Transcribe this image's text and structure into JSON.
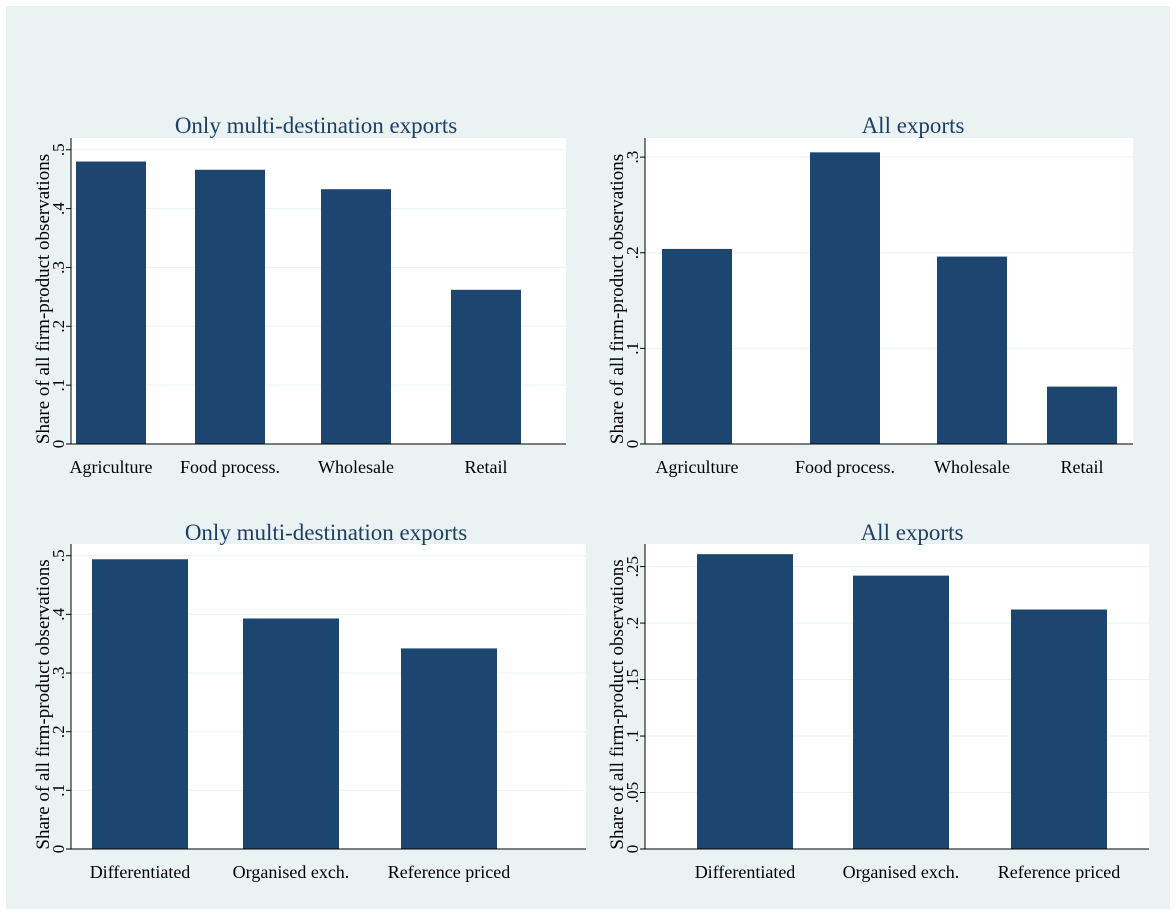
{
  "chart_data": [
    {
      "type": "bar",
      "title": "Only multi-destination exports",
      "ylabel": "Share of all firm-product observations",
      "categories": [
        "Agriculture",
        "Food process.",
        "Wholesale",
        "Retail"
      ],
      "values": [
        0.48,
        0.466,
        0.433,
        0.262
      ],
      "yticks": [
        0,
        0.1,
        0.2,
        0.3,
        0.4,
        0.5
      ],
      "ytick_labels": [
        "0",
        ".1",
        ".2",
        ".3",
        ".4",
        ".5"
      ],
      "ylim": [
        0,
        0.52
      ]
    },
    {
      "type": "bar",
      "title": "All exports",
      "ylabel": "Share of all firm-product observations",
      "categories": [
        "Agriculture",
        "Food process.",
        "Wholesale",
        "Retail"
      ],
      "values": [
        0.204,
        0.305,
        0.196,
        0.06
      ],
      "yticks": [
        0,
        0.1,
        0.2,
        0.3
      ],
      "ytick_labels": [
        "0",
        ".1",
        ".2",
        ".3"
      ],
      "ylim": [
        0,
        0.32
      ]
    },
    {
      "type": "bar",
      "title": "Only multi-destination exports",
      "ylabel": "Share of all firm-product observations",
      "categories": [
        "Differentiated",
        "Organised exch.",
        "Reference priced"
      ],
      "values": [
        0.494,
        0.393,
        0.342
      ],
      "yticks": [
        0,
        0.1,
        0.2,
        0.3,
        0.4,
        0.5
      ],
      "ytick_labels": [
        "0",
        ".1",
        ".2",
        ".3",
        ".4",
        ".5"
      ],
      "ylim": [
        0,
        0.52
      ]
    },
    {
      "type": "bar",
      "title": "All exports",
      "ylabel": "Share of all firm-product observations",
      "categories": [
        "Differentiated",
        "Organised exch.",
        "Reference priced"
      ],
      "values": [
        0.261,
        0.242,
        0.212
      ],
      "yticks": [
        0,
        0.05,
        0.1,
        0.15,
        0.2,
        0.25
      ],
      "ytick_labels": [
        "0",
        ".05",
        ".1",
        ".15",
        ".2",
        ".25"
      ],
      "ylim": [
        0,
        0.27
      ]
    }
  ],
  "colors": {
    "bar": "#1c466f",
    "title": "#1c3f66",
    "background": "#eaf2f3",
    "plot": "#ffffff"
  }
}
